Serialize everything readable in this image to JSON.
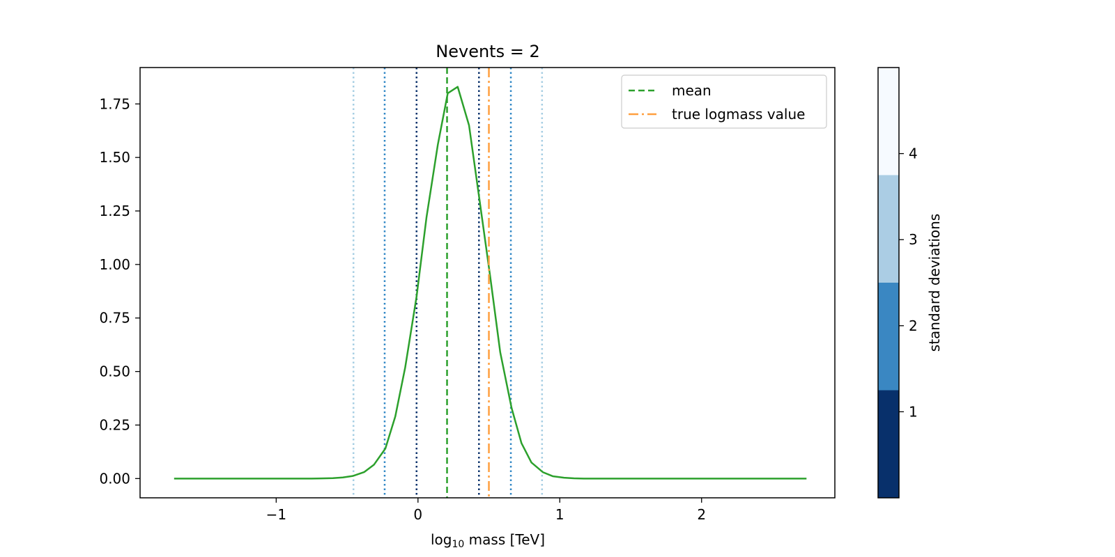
{
  "chart_data": {
    "type": "line",
    "title": "Nevents = 2",
    "xlabel": {
      "base": "log",
      "sub": "10",
      "rest": " mass [TeV]"
    },
    "ylabel": "",
    "xlim": [
      -1.96,
      2.94
    ],
    "ylim": [
      -0.09,
      1.92
    ],
    "x_ticks": [
      {
        "value": -1,
        "label": "−1"
      },
      {
        "value": 0,
        "label": "0"
      },
      {
        "value": 1,
        "label": "1"
      },
      {
        "value": 2,
        "label": "2"
      }
    ],
    "y_ticks": [
      {
        "value": 0.0,
        "label": "0.00"
      },
      {
        "value": 0.25,
        "label": "0.25"
      },
      {
        "value": 0.5,
        "label": "0.50"
      },
      {
        "value": 0.75,
        "label": "0.75"
      },
      {
        "value": 1.0,
        "label": "1.00"
      },
      {
        "value": 1.25,
        "label": "1.25"
      },
      {
        "value": 1.5,
        "label": "1.50"
      },
      {
        "value": 1.75,
        "label": "1.75"
      }
    ],
    "grid": false,
    "legend_position": "upper-right",
    "series": [
      {
        "name": "",
        "color": "#2ca02c",
        "x": [
          -1.72,
          -1.65,
          -1.57,
          -1.5,
          -1.42,
          -1.35,
          -1.27,
          -1.2,
          -1.12,
          -1.05,
          -0.97,
          -0.9,
          -0.82,
          -0.75,
          -0.68,
          -0.6,
          -0.53,
          -0.46,
          -0.38,
          -0.31,
          -0.23,
          -0.16,
          -0.09,
          -0.01,
          0.06,
          0.14,
          0.21,
          0.28,
          0.36,
          0.43,
          0.51,
          0.58,
          0.66,
          0.73,
          0.8,
          0.88,
          0.95,
          1.03,
          1.1,
          1.17,
          1.25,
          1.32,
          1.4,
          1.47,
          1.55,
          1.62,
          1.7,
          1.77,
          1.85,
          1.92,
          2.0,
          2.07,
          2.15,
          2.22,
          2.3,
          2.37,
          2.45,
          2.52,
          2.6,
          2.67,
          2.74
        ],
        "y": [
          0.0,
          0.0,
          0.0,
          0.0,
          0.0,
          0.0,
          0.0,
          0.0,
          0.0,
          0.0,
          0.0,
          0.0,
          0.0,
          0.0,
          0.0005,
          0.002,
          0.005,
          0.012,
          0.03,
          0.065,
          0.14,
          0.29,
          0.52,
          0.85,
          1.22,
          1.56,
          1.8,
          1.83,
          1.65,
          1.32,
          0.94,
          0.59,
          0.33,
          0.165,
          0.075,
          0.03,
          0.011,
          0.004,
          0.001,
          0.0,
          0.0,
          0.0,
          0.0,
          0.0,
          0.0,
          0.0,
          0.0,
          0.0,
          0.0,
          0.0,
          0.0,
          0.0,
          0.0,
          0.0,
          0.0,
          0.0,
          0.0,
          0.0,
          0.0,
          0.0,
          0.0
        ]
      }
    ],
    "vlines": [
      {
        "name": "mean",
        "x": 0.205,
        "color": "#2ca02c",
        "style": "dashed"
      },
      {
        "name": "true logmass value",
        "x": 0.5,
        "color": "#ff9f3f",
        "style": "dashdot"
      }
    ],
    "sigma_lines": [
      {
        "sigma": 1,
        "x": [
          -0.01,
          0.43
        ],
        "color": "#08306b"
      },
      {
        "sigma": 2,
        "x": [
          -0.235,
          0.655
        ],
        "color": "#3288c6"
      },
      {
        "sigma": 3,
        "x": [
          -0.455,
          0.875
        ],
        "color": "#a6cee3"
      }
    ],
    "colorbar": {
      "label": "standard deviations",
      "range": [
        0,
        5
      ],
      "ticks": [
        {
          "value": 1,
          "label": "1"
        },
        {
          "value": 2,
          "label": "2"
        },
        {
          "value": 3,
          "label": "3"
        },
        {
          "value": 4,
          "label": "4"
        }
      ],
      "bands": [
        {
          "from": 0,
          "to": 1.25,
          "color": "#08306b"
        },
        {
          "from": 1.25,
          "to": 2.5,
          "color": "#3a87c2"
        },
        {
          "from": 2.5,
          "to": 3.75,
          "color": "#abcde4"
        },
        {
          "from": 3.75,
          "to": 5,
          "color": "#f6faff"
        }
      ]
    }
  }
}
